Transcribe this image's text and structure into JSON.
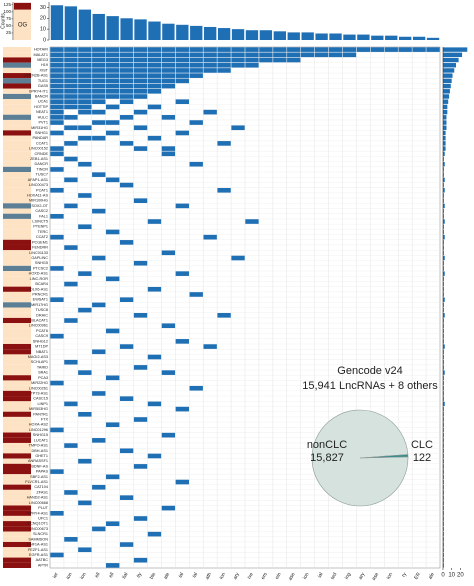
{
  "chart_data": {
    "type": "upset-matrix",
    "row_labels": [
      "HOTAIR",
      "MALAT1",
      "MEG3",
      "H19",
      "XIST",
      "CDKN2B-AS1",
      "TUG1",
      "GAS5",
      "SPRY4-IT1",
      "BANCR",
      "UCA1",
      "HOTTIP",
      "NEAT1",
      "HULC",
      "PVT1",
      "MIR31HG",
      "SNHG1",
      "PANDAR",
      "CCAT1",
      "LINC00152",
      "CRNDE",
      "ZEB1-AS1",
      "DANCR",
      "TINCR",
      "TUSC7",
      "AFAP1-AS1",
      "LINC00473",
      "PCAT1",
      "HOXA11-AS",
      "MIR100HG",
      "SOX2-OT",
      "CASC2",
      "FAL1",
      "LSINCT5",
      "PTENP1",
      "TERC",
      "CCAT2",
      "PCGEM1",
      "FENDRR",
      "LINC01133",
      "GAPLINC",
      "SNHG5",
      "PTCSC2",
      "HOXD-AS1",
      "LINC-ROR",
      "BCAR4",
      "DLX6-AS1",
      "PRNCR1",
      "EWSAT1",
      "MIR17HG",
      "TUSC8",
      "DRAIC",
      "BLACAT1",
      "LINC00961",
      "PCAT6",
      "CASC9",
      "SNHG12",
      "MT1DP",
      "NBAT1",
      "MAGI2-AS3",
      "SCHLAP1",
      "TARID",
      "SRA1",
      "PCA3",
      "MIR22HG",
      "LINC00261",
      "TP73-AS1",
      "CASC15",
      "LINP1",
      "MIR503HG",
      "PANTR1",
      "FTX",
      "HOXA-AS2",
      "LINC01296",
      "SNHG15",
      "LUCAT1",
      "TMPO-AS1",
      "DBH-AS1",
      "GHET1",
      "ANRASSF1",
      "BDNF-AS",
      "PAPAS",
      "SBF2-AS1",
      "FLVCR1-AS1",
      "CAT104",
      "ZFAS1",
      "HAND2-AS1",
      "LINC00668",
      "PLUT",
      "SPRY4-AS1",
      "UFC1",
      "KCNQ1OT1",
      "LINC00673",
      "SLNCR1",
      "SAMMSON",
      "HNF1A-AS1",
      "FEZF1-AS1",
      "EGFR-AS1",
      "AATBC",
      "APTR"
    ],
    "annotation": [
      1,
      1,
      0,
      2,
      1,
      0,
      2,
      0,
      1,
      2,
      1,
      1,
      1,
      2,
      1,
      1,
      0,
      1,
      1,
      1,
      1,
      1,
      1,
      2,
      1,
      1,
      1,
      1,
      1,
      1,
      2,
      1,
      2,
      1,
      1,
      1,
      1,
      0,
      0,
      1,
      1,
      1,
      2,
      1,
      1,
      1,
      0,
      1,
      1,
      2,
      1,
      1,
      0,
      1,
      1,
      1,
      1,
      0,
      0,
      1,
      1,
      1,
      1,
      0,
      1,
      1,
      0,
      0,
      1,
      1,
      0,
      1,
      1,
      1,
      0,
      0,
      1,
      1,
      0,
      1,
      0,
      0,
      1,
      1,
      0,
      1,
      1,
      1,
      0,
      0,
      1,
      0,
      0,
      1,
      1,
      0,
      1,
      1,
      0,
      0
    ],
    "annotation_colors": [
      "#8b1010",
      "#fde2c4",
      "#5d7f96"
    ],
    "rows": [
      [
        0,
        1,
        2,
        3,
        4,
        5,
        6,
        7,
        8,
        9,
        10,
        11,
        12,
        13,
        14,
        15,
        16,
        17,
        18,
        19,
        20,
        21,
        22,
        23,
        24,
        25,
        26,
        27
      ],
      [
        0,
        1,
        2,
        3,
        4,
        5,
        6,
        7,
        8,
        9,
        10,
        11,
        12,
        13,
        14,
        15,
        16,
        17,
        18,
        19,
        20,
        21
      ],
      [
        0,
        1,
        2,
        3,
        4,
        5,
        6,
        7,
        8,
        9,
        10,
        11,
        12,
        13,
        14,
        15,
        16,
        17
      ],
      [
        0,
        1,
        2,
        3,
        4,
        5,
        6,
        7,
        8,
        9,
        10,
        11,
        12,
        13,
        14
      ],
      [
        0,
        1,
        2,
        3,
        4,
        5,
        6,
        7,
        8,
        9,
        10,
        11,
        12
      ],
      [
        0,
        1,
        2,
        3,
        4,
        5,
        6,
        7,
        8,
        9,
        10
      ],
      [
        0,
        1,
        2,
        3,
        4,
        5,
        6,
        7,
        8,
        9
      ],
      [
        0,
        1,
        2,
        3,
        4,
        5,
        6,
        7,
        8
      ],
      [
        0,
        1,
        2,
        3,
        4,
        5,
        6,
        7
      ],
      [
        0,
        1,
        2,
        3,
        4,
        5,
        6
      ],
      [
        0,
        1,
        2,
        3,
        5,
        9
      ],
      [
        0,
        1,
        2,
        4,
        7
      ],
      [
        0,
        2,
        3,
        6,
        11
      ],
      [
        0,
        1,
        5,
        8
      ],
      [
        0,
        3,
        4,
        10
      ],
      [
        1,
        2,
        6,
        13
      ],
      [
        0,
        4,
        9
      ],
      [
        2,
        3,
        7
      ],
      [
        1,
        5,
        12
      ],
      [
        0,
        6,
        8
      ],
      [
        0,
        8
      ],
      [
        1
      ],
      [
        2,
        10
      ],
      [
        0
      ],
      [
        3
      ],
      [
        1,
        4
      ],
      [
        5
      ],
      [
        0,
        12
      ],
      [
        2
      ],
      [
        6
      ],
      [
        1,
        9
      ],
      [
        3
      ],
      [
        0
      ],
      [
        7,
        14
      ],
      [
        2
      ],
      [
        4
      ],
      [
        0,
        11
      ],
      [
        5
      ],
      [
        1
      ],
      [
        8
      ],
      [
        3,
        13
      ],
      [
        6
      ],
      [
        0
      ],
      [
        2,
        9
      ],
      [
        4
      ],
      [
        1
      ],
      [
        7
      ],
      [
        10
      ],
      [
        0,
        5
      ],
      [
        3
      ],
      [
        2
      ],
      [
        6,
        12
      ],
      [
        1
      ],
      [
        8
      ],
      [
        4
      ],
      [
        0
      ],
      [
        9
      ],
      [
        5,
        11
      ],
      [
        3
      ],
      [
        7
      ],
      [
        1
      ],
      [
        6
      ],
      [
        2,
        8
      ],
      [
        4
      ],
      [
        0
      ],
      [
        10
      ],
      [
        3
      ],
      [
        5
      ],
      [
        1,
        7
      ],
      [
        9
      ],
      [
        2
      ],
      [
        6
      ],
      [
        4
      ],
      [
        0
      ],
      [
        8
      ],
      [
        3
      ],
      [
        1
      ],
      [
        5
      ],
      [
        7
      ],
      [
        2
      ],
      [
        6
      ],
      [
        0
      ],
      [
        4
      ],
      [
        9
      ],
      [
        3
      ],
      [
        1
      ],
      [
        5
      ],
      [
        2
      ],
      [
        8
      ],
      [
        0
      ],
      [
        6
      ],
      [
        4
      ],
      [
        3
      ],
      [
        7
      ],
      [
        1
      ],
      [
        5
      ],
      [
        2
      ],
      [
        0
      ],
      [
        6
      ],
      [
        4
      ]
    ],
    "row_counts": [
      28,
      22,
      18,
      15,
      13,
      11,
      10,
      9,
      8,
      7,
      6,
      5,
      5,
      4,
      4,
      4,
      3,
      3,
      3,
      3,
      2,
      1,
      2,
      1,
      1,
      2,
      1,
      2,
      1,
      1,
      2,
      1,
      1,
      2,
      1,
      1,
      2,
      1,
      1,
      1,
      2,
      1,
      1,
      2,
      1,
      1,
      1,
      1,
      2,
      1,
      1,
      2,
      1,
      1,
      1,
      1,
      1,
      2,
      1,
      1,
      1,
      1,
      2,
      1,
      1,
      1,
      1,
      1,
      2,
      1,
      1,
      1,
      1,
      1,
      1,
      1,
      1,
      1,
      1,
      1,
      1,
      1,
      1,
      1,
      1,
      1,
      1,
      1,
      1,
      1,
      1,
      1,
      1,
      1,
      1,
      1,
      1,
      1,
      1,
      1
    ],
    "row_xlim": [
      0,
      30
    ],
    "row_xticks": [
      0,
      10,
      20
    ],
    "columns": [
      "ier",
      "ion",
      "ion",
      "ell",
      "ell",
      "lial",
      "ity",
      "ble",
      "ale",
      "ial",
      "ial",
      "ath",
      "ion",
      "ary",
      "ive",
      "ers",
      "ein",
      "ase",
      "ion",
      "ial",
      "ted",
      "ing",
      "ary",
      "ase",
      "ion",
      "ry",
      "ER",
      "ale"
    ],
    "column_counts": [
      32,
      31,
      28,
      24,
      22,
      20,
      19,
      17,
      15,
      14,
      13,
      12,
      11,
      10,
      9,
      9,
      8,
      7,
      7,
      6,
      6,
      5,
      5,
      4,
      4,
      3,
      3,
      2
    ],
    "column_ylim": [
      0,
      35
    ],
    "column_yticks": [
      0,
      10,
      20,
      30
    ],
    "cell_color": "#1f6fb4",
    "class_bar": {
      "ylabel": "Counts",
      "ylim": [
        0,
        135
      ],
      "yticks": [
        25,
        50,
        75,
        100,
        125
      ],
      "series": [
        {
          "name": "OG",
          "color": "#fde2c4",
          "values": [
            108
          ]
        },
        {
          "color": "#8b1010",
          "values": [
            24
          ]
        }
      ]
    },
    "pie": {
      "title": "Gencode v24",
      "subtitle": "15,941 LncRNAs + 8 others",
      "labels": [
        "nonCLC",
        "CLC"
      ],
      "values": [
        15827,
        122
      ],
      "value_labels": [
        "15,827",
        "122"
      ],
      "colors": [
        "#d6e2de",
        "#2e8b8b"
      ]
    }
  }
}
